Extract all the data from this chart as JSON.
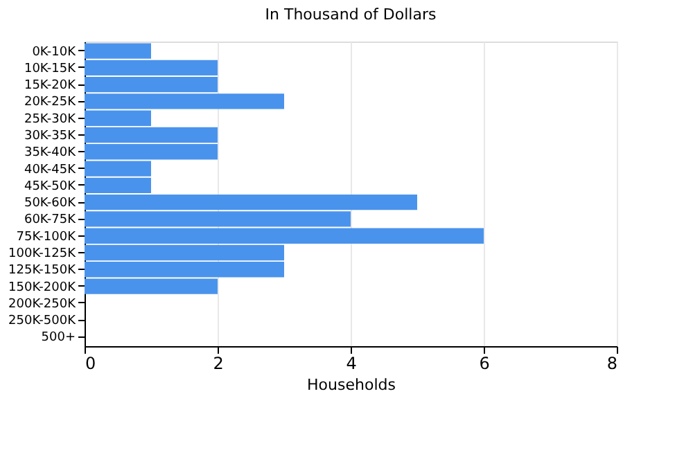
{
  "chart_data": {
    "type": "bar",
    "orientation": "horizontal",
    "title": "In Thousand of Dollars",
    "xlabel": "Households",
    "categories": [
      "0K-10K",
      "10K-15K",
      "15K-20K",
      "20K-25K",
      "25K-30K",
      "30K-35K",
      "35K-40K",
      "40K-45K",
      "45K-50K",
      "50K-60K",
      "60K-75K",
      "75K-100K",
      "100K-125K",
      "125K-150K",
      "150K-200K",
      "200K-250K",
      "250K-500K",
      "500+"
    ],
    "values": [
      1,
      2,
      2,
      3,
      1,
      2,
      2,
      1,
      1,
      5,
      4,
      6,
      3,
      3,
      2,
      0,
      0,
      0
    ],
    "color": "#4a93ec",
    "xlim": [
      0,
      8
    ],
    "xticks": [
      0,
      2,
      4,
      6,
      8
    ],
    "grid": "x"
  }
}
